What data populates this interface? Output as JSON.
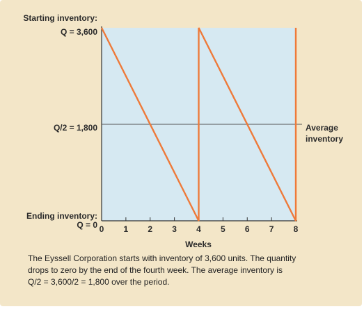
{
  "chart_data": {
    "type": "line",
    "title": "",
    "xlabel": "Weeks",
    "ylabel": "",
    "xlim": [
      0,
      8
    ],
    "ylim": [
      0,
      3600
    ],
    "x_ticks": [
      "0",
      "1",
      "2",
      "3",
      "4",
      "5",
      "6",
      "7",
      "8"
    ],
    "series": [
      {
        "x": [
          0,
          4,
          4,
          8,
          8
        ],
        "y": [
          3600,
          0,
          3600,
          0,
          3600
        ]
      }
    ],
    "reference_line": {
      "y": 1800,
      "label_left": "Q/2 = 1,800",
      "label_right_line1": "Average",
      "label_right_line2": "inventory"
    },
    "y_annotations": {
      "top_line1": "Starting inventory:",
      "top_line2": "Q = 3,600",
      "bottom_line1": "Ending inventory:",
      "bottom_line2": "Q = 0"
    },
    "colors": {
      "panel": "#f3e6c8",
      "plot_area": "#d6e9f2",
      "series": "#ee7a3a",
      "axis": "#333333",
      "reference_line": "#555555"
    }
  },
  "caption": {
    "line1": "The Eyssell Corporation starts with inventory of 3,600 units. The quantity",
    "line2": "drops to zero by the end of the fourth week. The average inventory is",
    "line3": "Q/2 = 3,600/2 = 1,800 over the period."
  }
}
